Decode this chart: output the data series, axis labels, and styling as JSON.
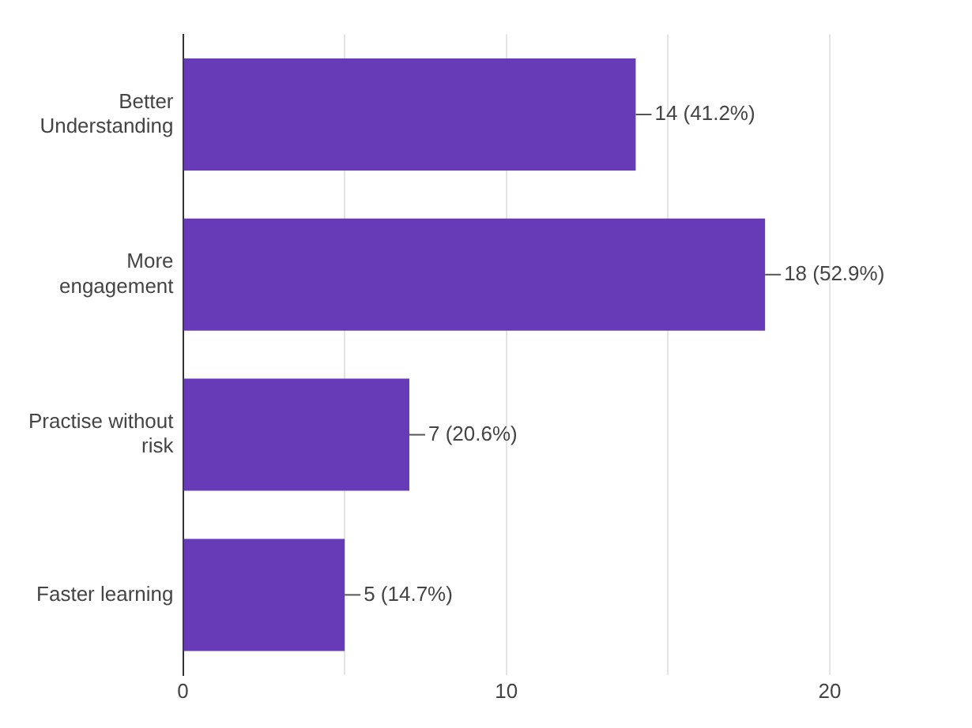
{
  "chart_data": {
    "type": "bar",
    "orientation": "horizontal",
    "categories": [
      "Better\nUnderstanding",
      "More\nengagement",
      "Practise without\nrisk",
      "Faster learning"
    ],
    "values": [
      14,
      18,
      7,
      5
    ],
    "color": "#673ab7",
    "value_labels": [
      "14 (41.2%)",
      "18 (52.9%)",
      "7 (20.6%)",
      "5 (14.7%)"
    ],
    "xlim": [
      0,
      20
    ],
    "xticks": [
      0,
      {
        "value": 5,
        "label": null
      },
      10,
      {
        "value": 15,
        "label": null
      },
      20
    ],
    "grid": "x",
    "legend": false
  }
}
